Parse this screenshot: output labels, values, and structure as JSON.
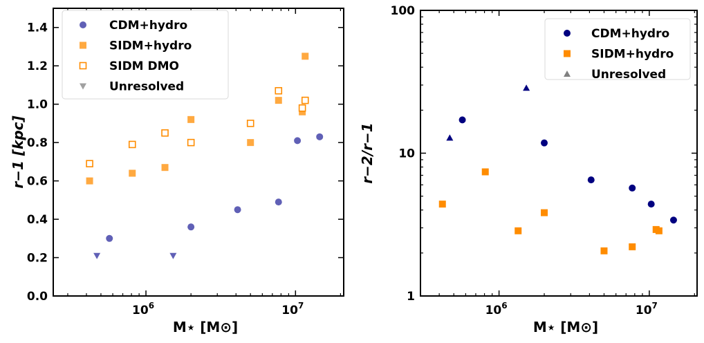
{
  "chart_data": [
    {
      "type": "scatter",
      "xlabel": "M⋆ [M⊙]",
      "ylabel": "r−1 [kpc]",
      "xscale": "log",
      "xlim": [
        240000,
        21000000
      ],
      "ylim": [
        0,
        1.5
      ],
      "xticks": [
        {
          "v": 1000000,
          "base": "10",
          "exp": "6"
        },
        {
          "v": 10000000,
          "base": "10",
          "exp": "7"
        }
      ],
      "yticks": [
        "0.0",
        "0.2",
        "0.4",
        "0.6",
        "0.8",
        "1.0",
        "1.2",
        "1.4"
      ],
      "legend": "top-left",
      "series": [
        {
          "name": "CDM+hydro",
          "marker": "circle",
          "color": "#2b2b9e",
          "points": [
            [
              570000,
              0.3
            ],
            [
              2000000,
              0.36
            ],
            [
              4100000,
              0.45
            ],
            [
              7700000,
              0.49
            ],
            [
              10300000,
              0.81
            ],
            [
              14500000,
              0.83
            ]
          ]
        },
        {
          "name": "SIDM+hydro",
          "marker": "square",
          "color": "#ff8c00",
          "points": [
            [
              420000,
              0.6
            ],
            [
              810000,
              0.64
            ],
            [
              1340000,
              0.67
            ],
            [
              2000000,
              0.92
            ],
            [
              5000000,
              0.8
            ],
            [
              7700000,
              1.02
            ],
            [
              11100000,
              0.96
            ],
            [
              11600000,
              1.25
            ]
          ]
        },
        {
          "name": "SIDM DMO",
          "marker": "square-open",
          "color": "#ff8c00",
          "points": [
            [
              420000,
              0.69
            ],
            [
              810000,
              0.79
            ],
            [
              1340000,
              0.85
            ],
            [
              2000000,
              0.8
            ],
            [
              5000000,
              0.9
            ],
            [
              7700000,
              1.07
            ],
            [
              11100000,
              0.98
            ],
            [
              11600000,
              1.02
            ]
          ]
        },
        {
          "name": "Unresolved",
          "marker": "triangle-down",
          "color": "#2b2b9e",
          "legend_color": "#808080",
          "points": [
            [
              470000,
              0.21
            ],
            [
              1520000,
              0.21
            ]
          ]
        }
      ]
    },
    {
      "type": "scatter",
      "xlabel": "M⋆ [M⊙]",
      "ylabel": "r−2/r−1",
      "xscale": "log",
      "yscale": "log",
      "xlim": [
        300000,
        20800000
      ],
      "ylim": [
        1,
        100
      ],
      "xticks": [
        {
          "v": 1000000,
          "base": "10",
          "exp": "6"
        },
        {
          "v": 10000000,
          "base": "10",
          "exp": "7"
        }
      ],
      "yticks": [
        "1",
        "10",
        "100"
      ],
      "legend": "top-right",
      "series": [
        {
          "name": "CDM+hydro",
          "marker": "circle",
          "color": "#000080",
          "points": [
            [
              570000,
              17.1
            ],
            [
              2000000,
              11.8
            ],
            [
              4100000,
              6.5
            ],
            [
              7700000,
              5.7
            ],
            [
              10300000,
              4.4
            ],
            [
              14500000,
              3.4
            ]
          ]
        },
        {
          "name": "SIDM+hydro",
          "marker": "square",
          "color": "#ff8c00",
          "points": [
            [
              420000,
              4.4
            ],
            [
              810000,
              7.4
            ],
            [
              1340000,
              2.86
            ],
            [
              2000000,
              3.83
            ],
            [
              5000000,
              2.07
            ],
            [
              7700000,
              2.21
            ],
            [
              11100000,
              2.92
            ],
            [
              11600000,
              2.86
            ]
          ]
        },
        {
          "name": "Unresolved",
          "marker": "triangle-up",
          "color": "#000080",
          "legend_color": "#808080",
          "points": [
            [
              470000,
              12.8
            ],
            [
              1520000,
              28.6
            ]
          ]
        }
      ]
    }
  ]
}
